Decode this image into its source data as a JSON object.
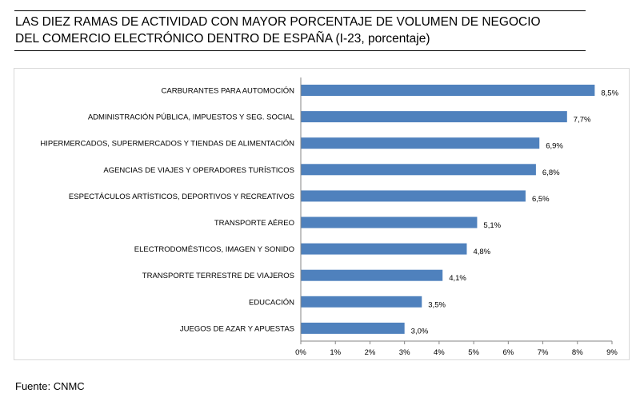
{
  "chart_data": {
    "type": "bar",
    "orientation": "horizontal",
    "title_lines": [
      "LAS DIEZ RAMAS DE ACTIVIDAD CON MAYOR PORCENTAJE DE VOLUMEN DE NEGOCIO",
      "DEL COMERCIO ELECTRÓNICO DENTRO DE ESPAÑA (I-23, porcentaje)"
    ],
    "categories": [
      "CARBURANTES PARA AUTOMOCIÓN",
      "ADMINISTRACIÓN PÚBLICA, IMPUESTOS Y SEG. SOCIAL",
      "HIPERMERCADOS, SUPERMERCADOS Y TIENDAS DE ALIMENTACIÓN",
      "AGENCIAS DE VIAJES Y OPERADORES TURÍSTICOS",
      "ESPECTÁCULOS ARTÍSTICOS, DEPORTIVOS Y RECREATIVOS",
      "TRANSPORTE AÉREO",
      "ELECTRODOMÉSTICOS,  IMAGEN Y SONIDO",
      "TRANSPORTE TERRESTRE DE VIAJEROS",
      "EDUCACIÓN",
      "JUEGOS DE AZAR Y APUESTAS"
    ],
    "values": [
      8.5,
      7.7,
      6.9,
      6.8,
      6.5,
      5.1,
      4.8,
      4.1,
      3.5,
      3.0
    ],
    "data_labels": [
      "8,5%",
      "7,7%",
      "6,9%",
      "6,8%",
      "6,5%",
      "5,1%",
      "4,8%",
      "4,1%",
      "3,5%",
      "3,0%"
    ],
    "xlim": [
      0,
      9
    ],
    "x_ticks": [
      0,
      1,
      2,
      3,
      4,
      5,
      6,
      7,
      8,
      9
    ],
    "x_tick_labels": [
      "0%",
      "1%",
      "2%",
      "3%",
      "4%",
      "5%",
      "6%",
      "7%",
      "8%",
      "9%"
    ],
    "grid": false,
    "legend": "none",
    "bar_color": "#4f81bd"
  },
  "source": "Fuente: CNMC"
}
